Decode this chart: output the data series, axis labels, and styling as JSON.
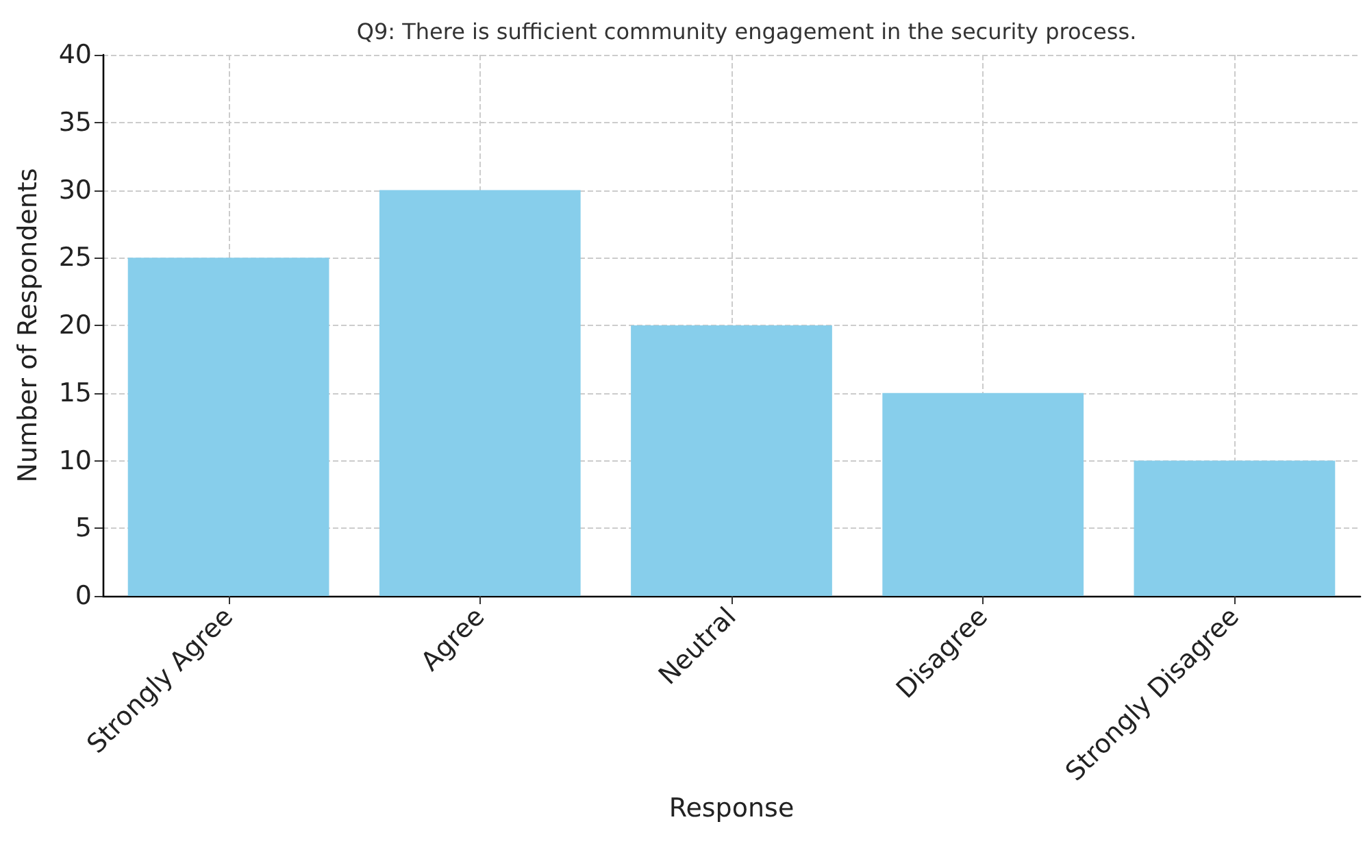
{
  "chart_data": {
    "type": "bar",
    "title": "Q9: There is sufficient community engagement in the security process.",
    "xlabel": "Response",
    "ylabel": "Number of Respondents",
    "categories": [
      "Strongly Agree",
      "Agree",
      "Neutral",
      "Disagree",
      "Strongly Disagree"
    ],
    "values": [
      25,
      30,
      20,
      15,
      10
    ],
    "color": "#87ceeb",
    "ylim": [
      0,
      40
    ],
    "yticks": [
      0,
      5,
      10,
      15,
      20,
      25,
      30,
      35,
      40
    ],
    "grid": true
  }
}
